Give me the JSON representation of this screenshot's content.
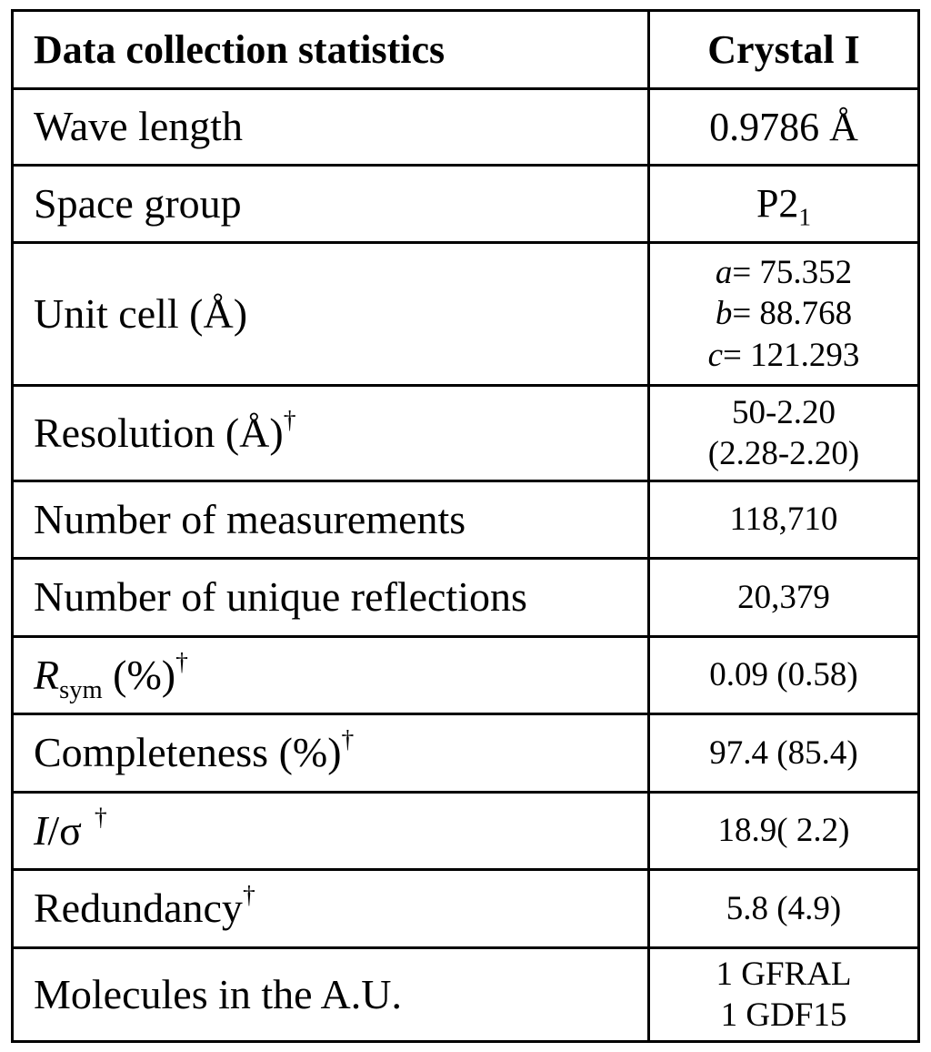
{
  "table": {
    "header": {
      "label": "Data collection statistics",
      "value": "Crystal I"
    },
    "rows": [
      {
        "label": "Wave length",
        "value": "0.9786 Å"
      },
      {
        "label": "Space group",
        "value_main": "P2",
        "value_sub": "1"
      },
      {
        "label": "Unit cell (Å)",
        "value_lines": [
          {
            "var": "a",
            "num": "= 75.352"
          },
          {
            "var": "b",
            "num": "= 88.768"
          },
          {
            "var": "c",
            "num": "= 121.293"
          }
        ]
      },
      {
        "label": "Resolution (Å)",
        "dagger": "†",
        "value_lines": [
          "50-2.20",
          "(2.28-2.20)"
        ]
      },
      {
        "label": "Number of measurements",
        "value": "118,710"
      },
      {
        "label": "Number of unique reflections",
        "value": "20,379"
      },
      {
        "label_main": "R",
        "label_sub": "sym",
        "label_rest": " (%)",
        "dagger": "†",
        "value": "0.09 (0.58)"
      },
      {
        "label": "Completeness (%)",
        "dagger": "†",
        "value": "97.4 (85.4)"
      },
      {
        "label_main": "I",
        "label_rest": "/σ",
        "dagger": "†",
        "value": "18.9( 2.2)"
      },
      {
        "label": "Redundancy",
        "dagger": "†",
        "value": "5.8 (4.9)"
      },
      {
        "label": "Molecules in the A.U.",
        "value_lines": [
          "1 GFRAL",
          "1 GDF15"
        ]
      }
    ]
  }
}
